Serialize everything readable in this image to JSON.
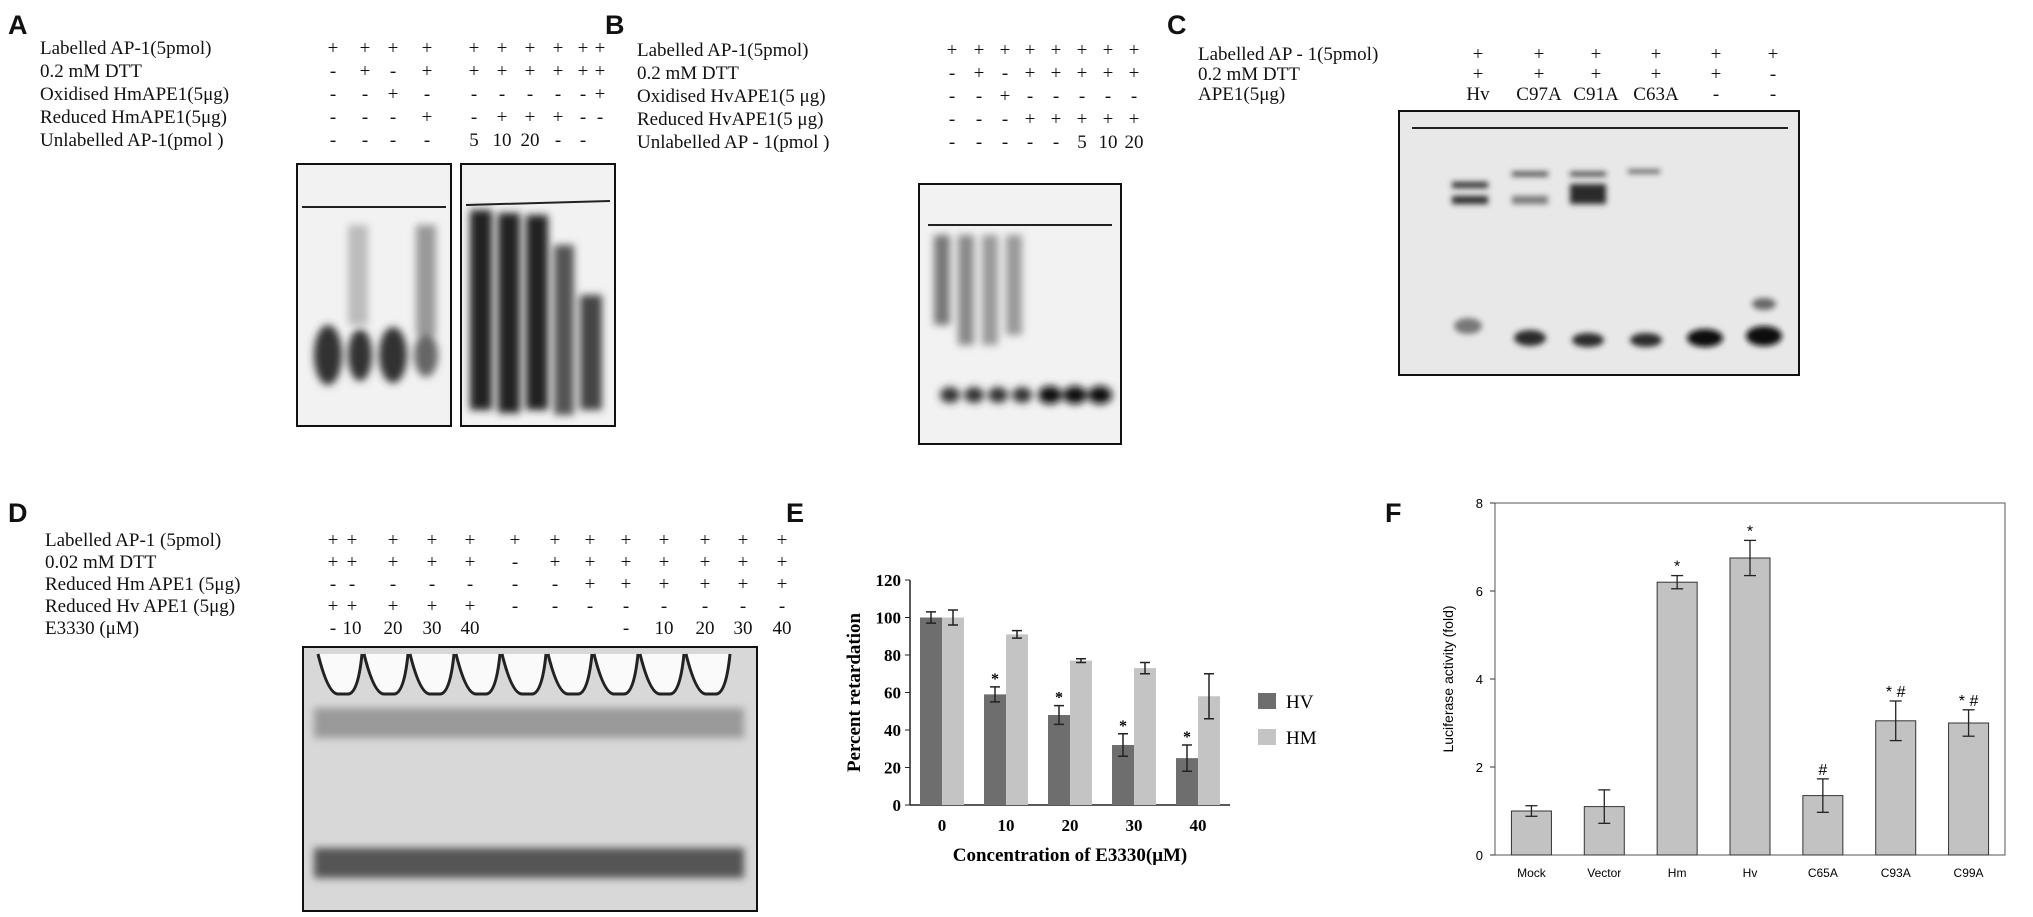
{
  "panels": {
    "A": {
      "letter": "A",
      "rows": [
        {
          "label": "Labelled  AP-1(5pmol)",
          "marks": [
            "+",
            "+",
            "+",
            "+",
            "+",
            "+",
            "+",
            "+",
            "+",
            "+"
          ]
        },
        {
          "label": "0.2  mM  DTT",
          "marks": [
            "-",
            "+",
            "-",
            "+",
            "+",
            "+",
            "+",
            "+",
            "+",
            "+"
          ]
        },
        {
          "label": "Oxidised  HmAPE1(5μg)",
          "marks": [
            "-",
            "-",
            "+",
            "-",
            "-",
            "-",
            "-",
            "-",
            "-",
            "+"
          ]
        },
        {
          "label": "Reduced  HmAPE1(5μg)",
          "marks": [
            "-",
            "-",
            "-",
            "+",
            "-",
            "+",
            "+",
            "+",
            "-",
            "-"
          ]
        },
        {
          "label": "Unlabelled AP-1(pmol )",
          "marks": [
            "-",
            "-",
            "-",
            "-",
            "5",
            "10",
            "20",
            "-",
            "-",
            ""
          ]
        }
      ]
    },
    "B": {
      "letter": "B",
      "rows": [
        {
          "label": "Labelled  AP-1(5pmol)",
          "marks": [
            "+",
            "+",
            "+",
            "+",
            "+",
            "+",
            "+",
            "+"
          ]
        },
        {
          "label": "0.2  mM   DTT",
          "marks": [
            "-",
            "+",
            "-",
            "+",
            "+",
            "+",
            "+",
            "+"
          ]
        },
        {
          "label": "Oxidised  HvAPE1(5 μg)",
          "marks": [
            "-",
            "-",
            "+",
            "-",
            "-",
            "-",
            "-",
            "-"
          ]
        },
        {
          "label": "Reduced  HvAPE1(5 μg)",
          "marks": [
            "-",
            "-",
            "-",
            "+",
            "+",
            "+",
            "+",
            "+"
          ]
        },
        {
          "label": "Unlabelled  AP - 1(pmol )",
          "marks": [
            "-",
            "-",
            "-",
            "-",
            "-",
            "5",
            "10",
            "20"
          ]
        }
      ]
    },
    "C": {
      "letter": "C",
      "rows": [
        {
          "label": "Labelled   AP - 1(5pmol)",
          "marks": [
            "+",
            "+",
            "+",
            "+",
            "+",
            "+"
          ]
        },
        {
          "label": "0.2  mM  DTT",
          "marks": [
            "+",
            "+",
            "+",
            "+",
            "+",
            "-"
          ]
        },
        {
          "label": "APE1(5μg)",
          "marks": [
            "Hv",
            "C97A",
            "C91A",
            "C63A",
            "-",
            "-"
          ]
        }
      ]
    },
    "D": {
      "letter": "D",
      "rows": [
        {
          "label": "Labelled AP-1 (5pmol)",
          "marks": [
            "+",
            "+",
            "+",
            "+",
            "+",
            "+",
            "+",
            "+",
            "+",
            "+",
            "+",
            "+",
            "+"
          ]
        },
        {
          "label": "0.02 mM DTT",
          "marks": [
            "+",
            "+",
            "+",
            "+",
            "+",
            "-",
            "+",
            "+",
            "+",
            "+",
            "+",
            "+",
            "+"
          ]
        },
        {
          "label": "Reduced  Hm APE1 (5μg)",
          "marks": [
            "-",
            "-",
            "-",
            "-",
            "-",
            "-",
            "-",
            "+",
            "+",
            "+",
            "+",
            "+",
            "+"
          ]
        },
        {
          "label": "Reduced  Hv APE1 (5μg)",
          "marks": [
            "+",
            "+",
            "+",
            "+",
            "+",
            "-",
            "-",
            "-",
            "-",
            "-",
            "-",
            "-",
            "-"
          ]
        },
        {
          "label": "E3330 (μM)",
          "marks": [
            "-",
            "10",
            "20",
            "30",
            "40",
            "",
            "",
            "",
            "-",
            "10",
            "20",
            "30",
            "40"
          ]
        }
      ]
    },
    "E": {
      "letter": "E"
    },
    "F": {
      "letter": "F"
    }
  },
  "chart_data": [
    {
      "panel": "E",
      "type": "bar",
      "xlabel": "Concentration of E3330(μM)",
      "ylabel": "Percent retardation",
      "categories": [
        "0",
        "10",
        "20",
        "30",
        "40"
      ],
      "ylim": [
        0,
        120
      ],
      "yticks": [
        "0",
        "20",
        "40",
        "60",
        "80",
        "100",
        "120"
      ],
      "series": [
        {
          "name": "HV",
          "color": "#6e6e6e",
          "values": [
            100,
            59,
            48,
            32,
            25
          ],
          "errors": [
            3,
            4,
            5,
            6,
            7
          ],
          "sig": [
            "",
            "*",
            "*",
            "*",
            "*"
          ]
        },
        {
          "name": "HM",
          "color": "#c4c4c4",
          "values": [
            100,
            91,
            77,
            73,
            58
          ],
          "errors": [
            4,
            2,
            1,
            3,
            12
          ],
          "sig": [
            "",
            "",
            "",
            "",
            ""
          ]
        }
      ],
      "legend": "right"
    },
    {
      "panel": "F",
      "type": "bar",
      "xlabel": "",
      "ylabel": "Luciferase activity (fold)",
      "categories": [
        "Mock",
        "Vector",
        "Hm",
        "Hv",
        "C65A",
        "C93A",
        "C99A"
      ],
      "ylim": [
        0,
        8
      ],
      "yticks": [
        "0",
        "2",
        "4",
        "6",
        "8"
      ],
      "series": [
        {
          "color": "#c2c2c2",
          "values": [
            1.0,
            1.1,
            6.2,
            6.75,
            1.35,
            3.05,
            3.0
          ],
          "errors": [
            0.12,
            0.38,
            0.15,
            0.4,
            0.38,
            0.45,
            0.3
          ],
          "sig": [
            "",
            "",
            "*",
            "*",
            "#",
            "* #",
            "* #"
          ]
        }
      ]
    }
  ]
}
